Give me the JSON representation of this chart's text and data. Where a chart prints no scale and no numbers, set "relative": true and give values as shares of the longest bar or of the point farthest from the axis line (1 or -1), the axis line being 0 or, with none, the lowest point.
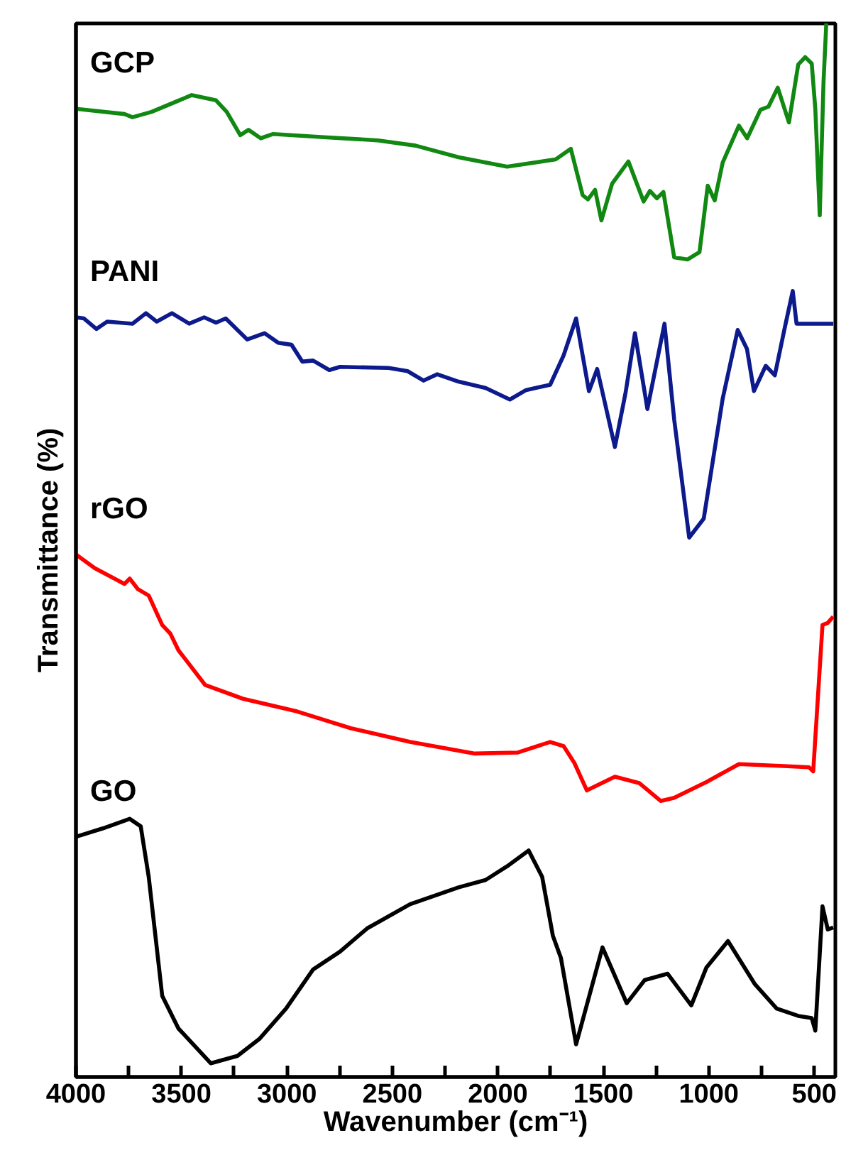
{
  "chart_data": {
    "type": "line",
    "xlabel": "Wavenumber (cm⁻¹)",
    "ylabel": "Transmittance (%)",
    "relative": true,
    "tick_labels": "x",
    "grid": false,
    "marker": "none",
    "line_style": "solid",
    "xlim": [
      4000,
      400
    ],
    "xticks": [
      4000,
      {
        "value": 3750,
        "label": null
      },
      3500,
      {
        "value": 3250,
        "label": null
      },
      3000,
      {
        "value": 2750,
        "label": null
      },
      2500,
      {
        "value": 2250,
        "label": null
      },
      2000,
      {
        "value": 1750,
        "label": null
      },
      1500,
      {
        "value": 1250,
        "label": null
      },
      1000,
      {
        "value": 750,
        "label": null
      },
      500
    ],
    "series": [
      {
        "name": "GCP",
        "color": "#118811",
        "x": [
          4000,
          3770,
          3732,
          3642,
          3451,
          3336,
          3285,
          3221,
          3182,
          3124,
          3067,
          2825,
          2569,
          2390,
          2186,
          1956,
          1726,
          1654,
          1598,
          1573,
          1539,
          1509,
          1458,
          1381,
          1309,
          1279,
          1246,
          1215,
          1164,
          1100,
          1044,
          1005,
          972,
          934,
          857,
          818,
          755,
          717,
          673,
          620,
          576,
          543,
          512,
          495,
          474,
          456,
          443
        ],
        "values": [
          0.919,
          0.914,
          0.911,
          0.916,
          0.932,
          0.927,
          0.916,
          0.894,
          0.899,
          0.891,
          0.895,
          0.892,
          0.889,
          0.884,
          0.873,
          0.864,
          0.871,
          0.881,
          0.837,
          0.833,
          0.842,
          0.813,
          0.848,
          0.869,
          0.831,
          0.841,
          0.834,
          0.84,
          0.778,
          0.776,
          0.783,
          0.846,
          0.832,
          0.868,
          0.903,
          0.891,
          0.918,
          0.921,
          0.939,
          0.906,
          0.961,
          0.968,
          0.962,
          0.919,
          0.818,
          0.945,
          1.0
        ]
      },
      {
        "name": "PANI",
        "color": "#0d1a8c",
        "x": [
          4000,
          3962,
          3903,
          3852,
          3732,
          3668,
          3617,
          3545,
          3463,
          3392,
          3336,
          3290,
          3188,
          3106,
          3042,
          2978,
          2927,
          2876,
          2799,
          2748,
          2518,
          2428,
          2352,
          2288,
          2186,
          2058,
          1943,
          1866,
          1752,
          1688,
          1629,
          1568,
          1529,
          1445,
          1394,
          1350,
          1291,
          1210,
          1164,
          1093,
          1024,
          934,
          863,
          819,
          786,
          730,
          687,
          640,
          602,
          584,
          500,
          410
        ],
        "values": [
          0.721,
          0.72,
          0.71,
          0.717,
          0.715,
          0.725,
          0.717,
          0.725,
          0.715,
          0.721,
          0.716,
          0.72,
          0.7,
          0.706,
          0.697,
          0.695,
          0.679,
          0.68,
          0.671,
          0.674,
          0.673,
          0.67,
          0.661,
          0.667,
          0.66,
          0.654,
          0.643,
          0.652,
          0.657,
          0.685,
          0.72,
          0.651,
          0.672,
          0.598,
          0.65,
          0.706,
          0.634,
          0.715,
          0.624,
          0.512,
          0.53,
          0.644,
          0.709,
          0.691,
          0.651,
          0.675,
          0.666,
          0.711,
          0.746,
          0.715,
          0.715,
          0.715
        ]
      },
      {
        "name": "rGO",
        "color": "#ff0000",
        "x": [
          4000,
          3911,
          3770,
          3745,
          3706,
          3655,
          3591,
          3553,
          3514,
          3387,
          3208,
          2952,
          2697,
          2416,
          2109,
          1905,
          1752,
          1688,
          1637,
          1578,
          1445,
          1330,
          1228,
          1164,
          1011,
          857,
          627,
          525,
          505,
          461,
          436,
          410
        ],
        "values": [
          0.496,
          0.483,
          0.468,
          0.473,
          0.463,
          0.457,
          0.429,
          0.421,
          0.405,
          0.372,
          0.359,
          0.347,
          0.331,
          0.318,
          0.307,
          0.308,
          0.318,
          0.314,
          0.298,
          0.272,
          0.285,
          0.279,
          0.262,
          0.265,
          0.28,
          0.297,
          0.295,
          0.294,
          0.29,
          0.429,
          0.431,
          0.437
        ]
      },
      {
        "name": "GO",
        "color": "#000000",
        "x": [
          4000,
          3872,
          3745,
          3693,
          3655,
          3591,
          3514,
          3361,
          3234,
          3131,
          3004,
          2876,
          2748,
          2620,
          2416,
          2186,
          2058,
          1956,
          1854,
          1790,
          1739,
          1701,
          1629,
          1504,
          1389,
          1304,
          1195,
          1083,
          1011,
          909,
          781,
          678,
          576,
          512,
          495,
          461,
          436,
          410
        ],
        "values": [
          0.228,
          0.236,
          0.245,
          0.238,
          0.19,
          0.077,
          0.046,
          0.013,
          0.02,
          0.036,
          0.065,
          0.102,
          0.119,
          0.141,
          0.164,
          0.18,
          0.187,
          0.2,
          0.215,
          0.19,
          0.134,
          0.113,
          0.031,
          0.123,
          0.07,
          0.092,
          0.098,
          0.068,
          0.104,
          0.129,
          0.088,
          0.065,
          0.058,
          0.056,
          0.044,
          0.162,
          0.14,
          0.142
        ]
      }
    ]
  }
}
